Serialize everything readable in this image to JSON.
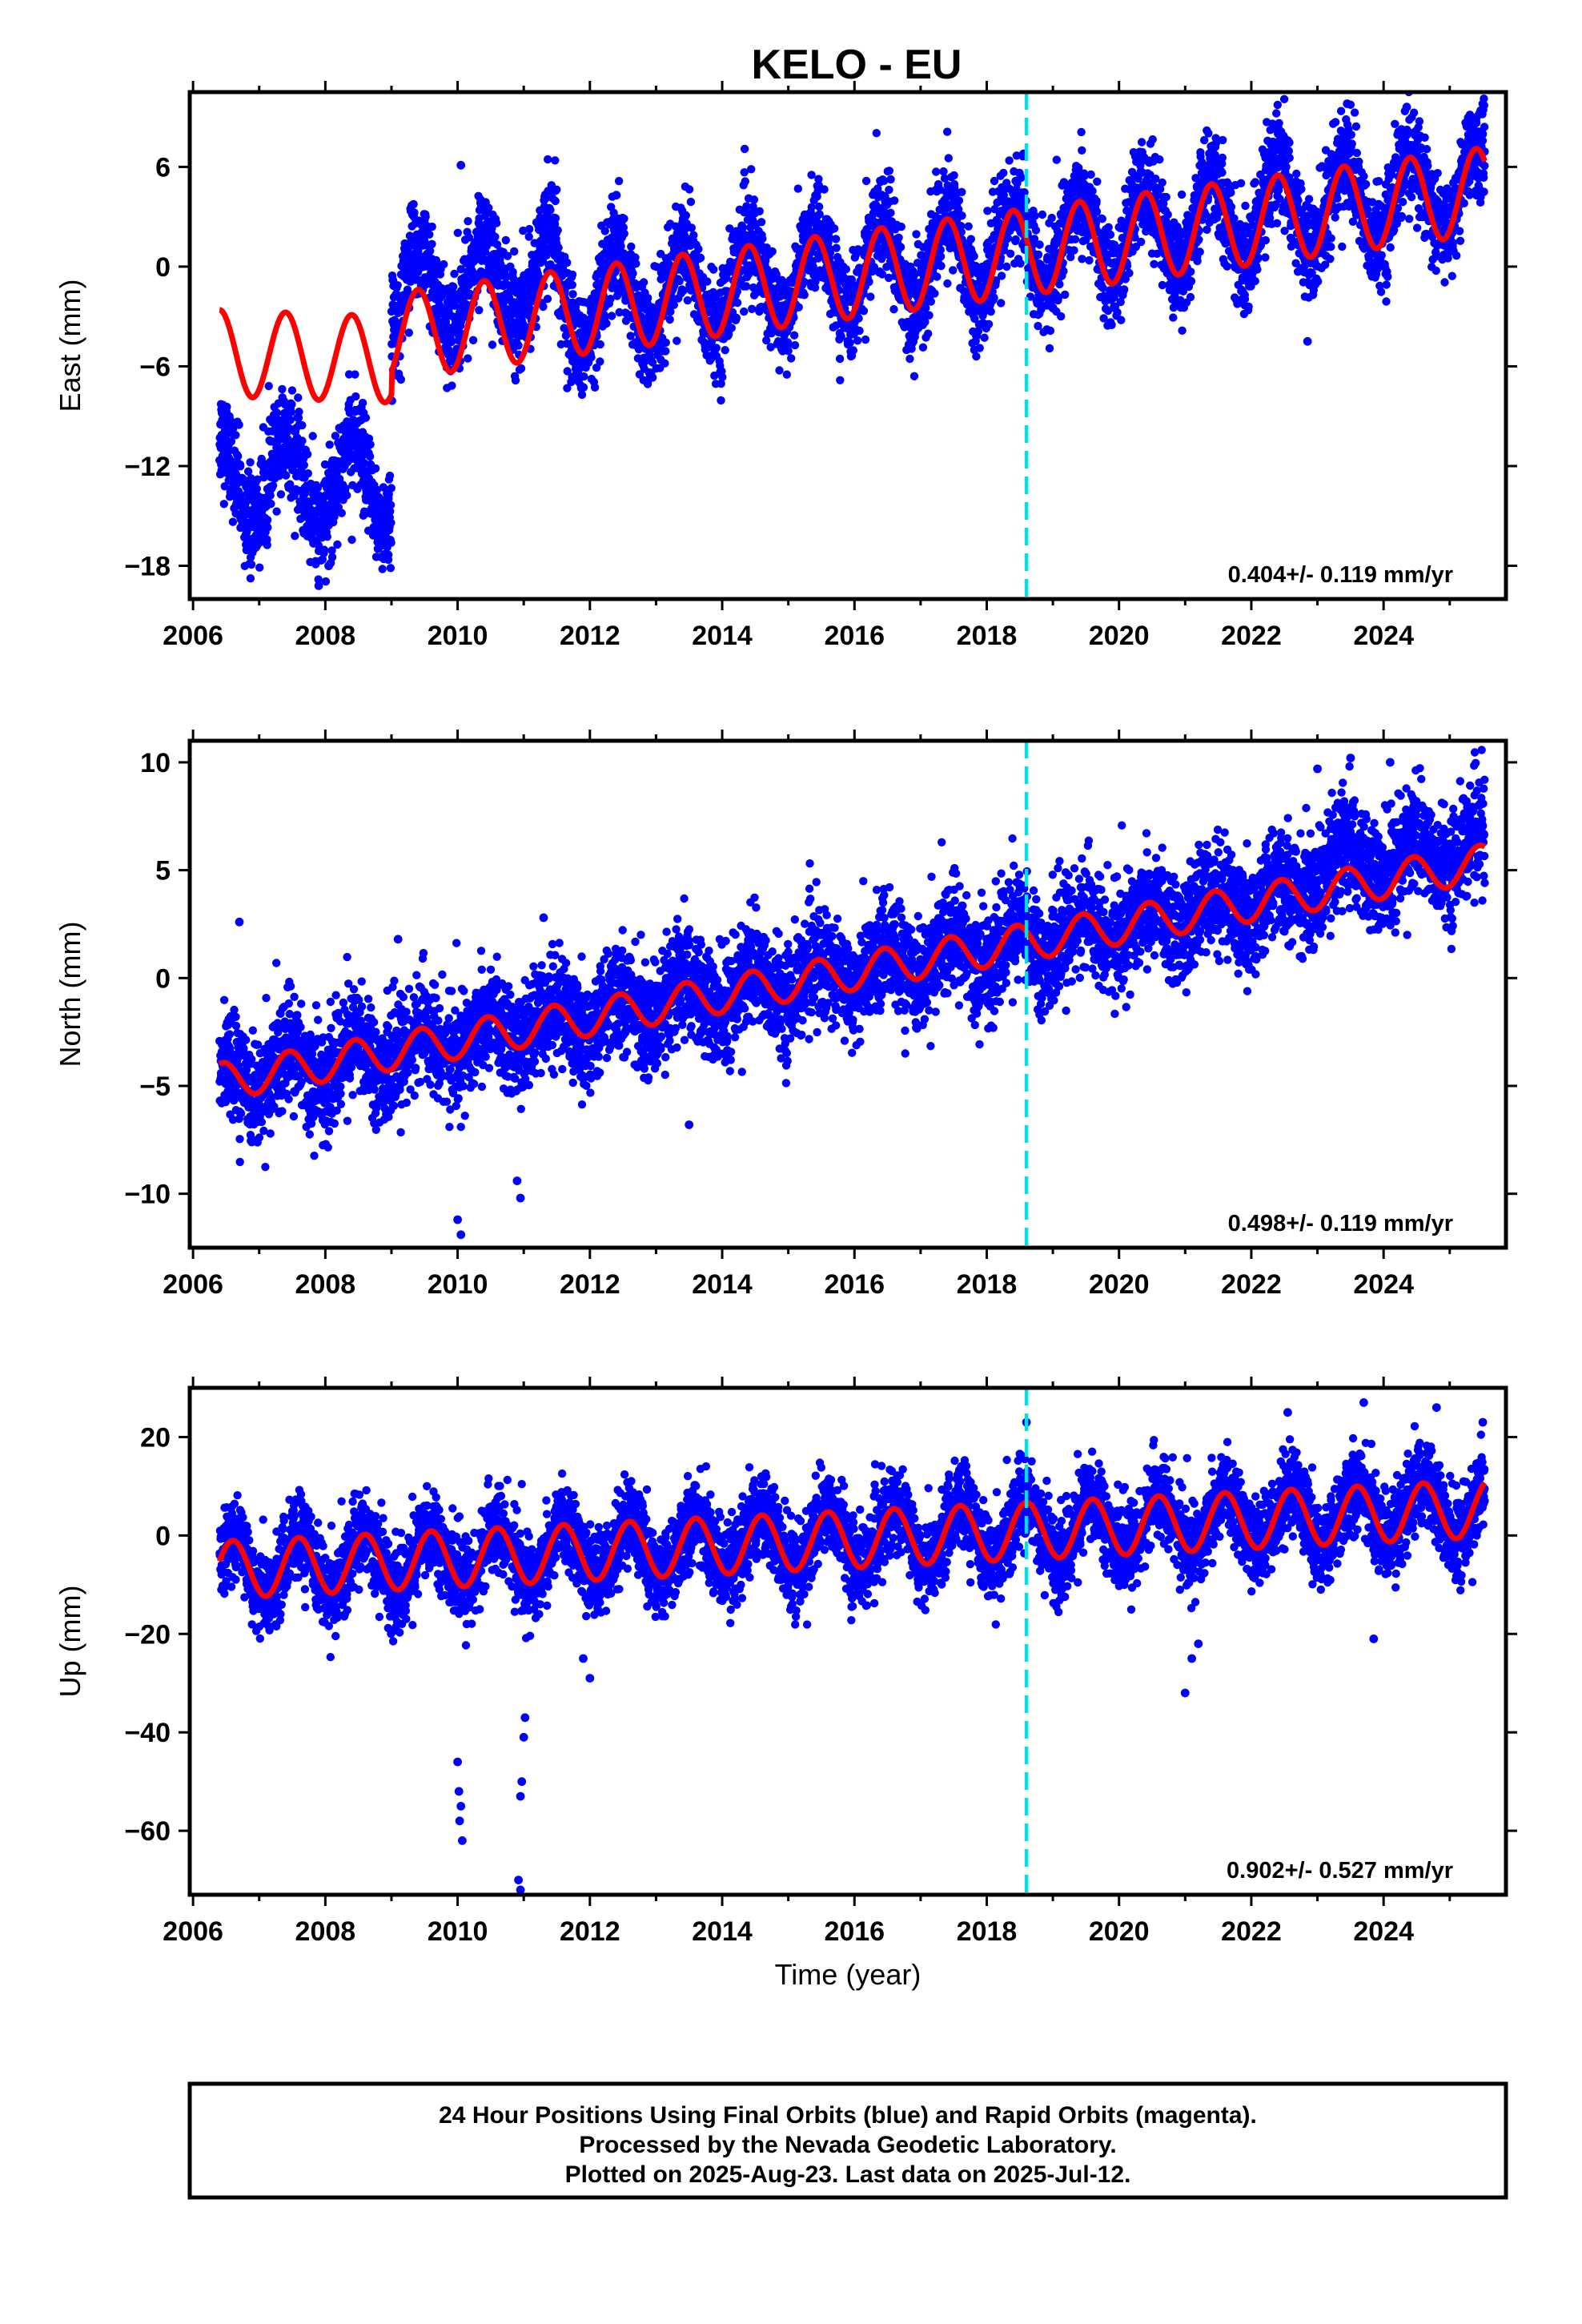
{
  "title": "KELO - EU",
  "footer": {
    "line1": "24 Hour Positions Using Final Orbits (blue) and Rapid Orbits (magenta).",
    "line2": "Processed by the Nevada Geodetic Laboratory.",
    "line3": "Plotted on 2025-Aug-23. Last data on 2025-Jul-12."
  },
  "colors": {
    "final_orbits": "#0000ff",
    "model": "#ff0000",
    "event": "#00e0e0"
  },
  "chart_data": [
    {
      "type": "scatter",
      "name": "east-panel",
      "ylabel": "East (mm)",
      "xlabel": "",
      "xlim": [
        2005.95,
        2025.85
      ],
      "ylim": [
        -20,
        10.5
      ],
      "yticks": [
        -18,
        -12,
        -6,
        0,
        6
      ],
      "xticks": [
        2006,
        2008,
        2010,
        2012,
        2014,
        2016,
        2018,
        2020,
        2022,
        2024
      ],
      "rate_label": "0.404+/- 0.119 mm/yr",
      "event_line_x": 2018.6,
      "data_start": 2006.4,
      "data_end": 2025.53,
      "model": {
        "segments": [
          {
            "x0": 2006.4,
            "x1": 2009.0,
            "base": -5.2,
            "slope": -0.15,
            "ref": 2006.4
          },
          {
            "x0": 2009.0,
            "x1": 2025.53,
            "base": -4.2,
            "slope": 0.53,
            "ref": 2009.0
          }
        ],
        "amplitude": 2.6,
        "phase_peak": 0.4
      },
      "scatter_offsets": [
        {
          "x0": 2006.4,
          "x1": 2009.0,
          "offset": -7.5
        },
        {
          "x0": 2009.0,
          "x1": 2011.5,
          "offset": 2.5
        },
        {
          "x0": 2011.5,
          "x1": 2025.53,
          "offset": 0.3
        }
      ],
      "noise_sd": 1.5,
      "outliers": [
        [
          2007.9,
          -19.2
        ],
        [
          2008.05,
          -18.0
        ],
        [
          2023.45,
          9.8
        ],
        [
          2024.35,
          9.6
        ],
        [
          2010.05,
          6.1
        ],
        [
          2012.4,
          4.3
        ],
        [
          2022.85,
          -4.5
        ]
      ]
    },
    {
      "type": "scatter",
      "name": "north-panel",
      "ylabel": "North (mm)",
      "xlabel": "",
      "xlim": [
        2005.95,
        2025.85
      ],
      "ylim": [
        -12.5,
        11
      ],
      "yticks": [
        -10,
        -5,
        0,
        5,
        10
      ],
      "xticks": [
        2006,
        2008,
        2010,
        2012,
        2014,
        2016,
        2018,
        2020,
        2022,
        2024
      ],
      "rate_label": "0.498+/- 0.119 mm/yr",
      "event_line_x": 2018.6,
      "data_start": 2006.4,
      "data_end": 2025.53,
      "model": {
        "segments": [
          {
            "x0": 2006.4,
            "x1": 2025.53,
            "base": -4.8,
            "slope": 0.53,
            "ref": 2006.4
          }
        ],
        "amplitude": 0.85,
        "phase_peak": 0.45
      },
      "scatter_offsets": [
        {
          "x0": 2006.4,
          "x1": 2022.8,
          "offset": 0
        },
        {
          "x0": 2022.8,
          "x1": 2025.53,
          "offset": 0.8
        }
      ],
      "noise_sd": 1.25,
      "outliers": [
        [
          2010.0,
          -11.2
        ],
        [
          2010.05,
          -11.9
        ],
        [
          2010.95,
          -10.2
        ],
        [
          2010.9,
          -9.4
        ],
        [
          2006.7,
          2.6
        ],
        [
          2009.1,
          1.8
        ],
        [
          2011.3,
          2.8
        ],
        [
          2023.5,
          10.2
        ],
        [
          2024.1,
          10.0
        ],
        [
          2023.0,
          9.7
        ],
        [
          2013.5,
          -6.8
        ]
      ]
    },
    {
      "type": "scatter",
      "name": "up-panel",
      "ylabel": "Up (mm)",
      "xlabel": "Time (year)",
      "xlim": [
        2005.95,
        2025.85
      ],
      "ylim": [
        -73,
        30
      ],
      "yticks": [
        -60,
        -40,
        -20,
        0,
        20
      ],
      "xticks": [
        2006,
        2008,
        2010,
        2012,
        2014,
        2016,
        2018,
        2020,
        2022,
        2024
      ],
      "rate_label": "0.902+/- 0.527 mm/yr",
      "event_line_x": 2018.6,
      "data_start": 2006.4,
      "data_end": 2025.53,
      "model": {
        "segments": [
          {
            "x0": 2006.4,
            "x1": 2025.53,
            "base": -7.0,
            "slope": 0.65,
            "ref": 2006.4
          }
        ],
        "amplitude": 5.8,
        "phase_peak": 0.6
      },
      "scatter_offsets": [
        {
          "x0": 2006.4,
          "x1": 2025.53,
          "offset": 0
        }
      ],
      "noise_sd": 4.3,
      "outliers": [
        [
          2010.0,
          -46
        ],
        [
          2010.02,
          -52
        ],
        [
          2010.05,
          -55
        ],
        [
          2010.03,
          -58
        ],
        [
          2010.07,
          -62
        ],
        [
          2010.95,
          -53
        ],
        [
          2010.97,
          -50
        ],
        [
          2011.0,
          -41
        ],
        [
          2011.02,
          -37
        ],
        [
          2010.92,
          -70
        ],
        [
          2010.95,
          -72
        ],
        [
          2011.9,
          -25
        ],
        [
          2012.0,
          -29
        ],
        [
          2021.0,
          -32
        ],
        [
          2021.1,
          -25
        ],
        [
          2021.2,
          -22
        ],
        [
          2023.85,
          -21
        ],
        [
          2018.6,
          23
        ],
        [
          2023.7,
          27
        ],
        [
          2025.5,
          23
        ],
        [
          2024.8,
          26
        ],
        [
          2022.55,
          25
        ]
      ]
    }
  ]
}
